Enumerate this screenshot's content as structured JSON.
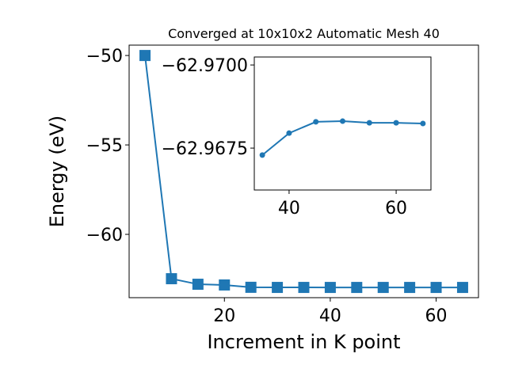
{
  "chart_data": [
    {
      "type": "line",
      "title": "Converged at 10x10x2 Automatic Mesh 40",
      "xlabel": "Increment in K point",
      "ylabel": "Energy (eV)",
      "x": [
        5,
        10,
        15,
        20,
        25,
        30,
        35,
        40,
        45,
        50,
        55,
        60,
        65
      ],
      "series": [
        {
          "color": "#1f77b4",
          "marker": "square",
          "values": [
            -50.0,
            -62.48,
            -62.79,
            -62.83,
            -62.96,
            -62.967,
            -62.9673,
            -62.968,
            -62.9683,
            -62.9683,
            -62.9683,
            -62.9683,
            -62.9682
          ]
        }
      ],
      "xlim": [
        2,
        68
      ],
      "ylim": [
        -63.54,
        -49.42
      ],
      "xticks": [
        20,
        40,
        60
      ],
      "yticks": [
        {
          "value": -60,
          "label": "−60"
        },
        {
          "value": -55,
          "label": "−55"
        },
        {
          "value": -50,
          "label": "−50"
        }
      ]
    },
    {
      "type": "line",
      "x": [
        35,
        40,
        45,
        50,
        55,
        60,
        65
      ],
      "series": [
        {
          "color": "#1f77b4",
          "marker": "circle",
          "values": [
            -62.96729,
            -62.96795,
            -62.96829,
            -62.96831,
            -62.96826,
            -62.96826,
            -62.96824
          ]
        }
      ],
      "xlim": [
        33.5,
        66.5
      ],
      "ylim": [
        -62.96624,
        -62.97024
      ],
      "xticks": [
        40,
        60
      ],
      "yticks": [
        {
          "value": -62.97,
          "label": "−62.9700"
        },
        {
          "value": -62.9675,
          "label": "−62.9675"
        }
      ]
    }
  ]
}
